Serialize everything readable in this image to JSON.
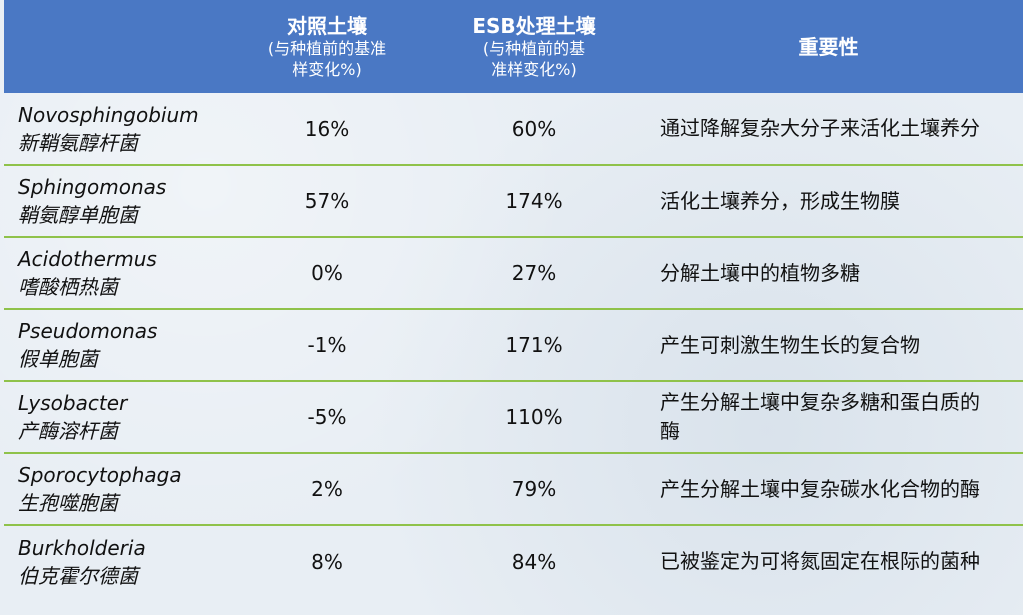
{
  "header": {
    "control_title": "对照土壤",
    "control_sub": "(与种植前的基准样变化%)",
    "esb_title": "ESB处理土壤",
    "esb_sub": "(与种植前的基准样变化%)",
    "significance_title": "重要性"
  },
  "rows": [
    {
      "latin": "Novosphingobium",
      "chinese": "新鞘氨醇杆菌",
      "control": "16%",
      "esb": "60%",
      "significance": "通过降解复杂大分子来活化土壤养分"
    },
    {
      "latin": "Sphingomonas",
      "chinese": "鞘氨醇单胞菌",
      "control": "57%",
      "esb": "174%",
      "significance": "活化土壤养分，形成生物膜"
    },
    {
      "latin": "Acidothermus",
      "chinese": "嗜酸栖热菌",
      "control": "0%",
      "esb": "27%",
      "significance": "分解土壤中的植物多糖"
    },
    {
      "latin": "Pseudomonas",
      "chinese": "假单胞菌",
      "control": "-1%",
      "esb": "171%",
      "significance": "产生可刺激生物生长的复合物"
    },
    {
      "latin": "Lysobacter",
      "chinese": "产酶溶杆菌",
      "control": "-5%",
      "esb": "110%",
      "significance": "产生分解土壤中复杂多糖和蛋白质的酶"
    },
    {
      "latin": "Sporocytophaga",
      "chinese": "生孢噬胞菌",
      "control": "2%",
      "esb": "79%",
      "significance": "产生分解土壤中复杂碳水化合物的酶"
    },
    {
      "latin": "Burkholderia",
      "chinese": "伯克霍尔德菌",
      "control": "8%",
      "esb": "84%",
      "significance": "已被鉴定为可将氮固定在根际的菌种"
    }
  ]
}
